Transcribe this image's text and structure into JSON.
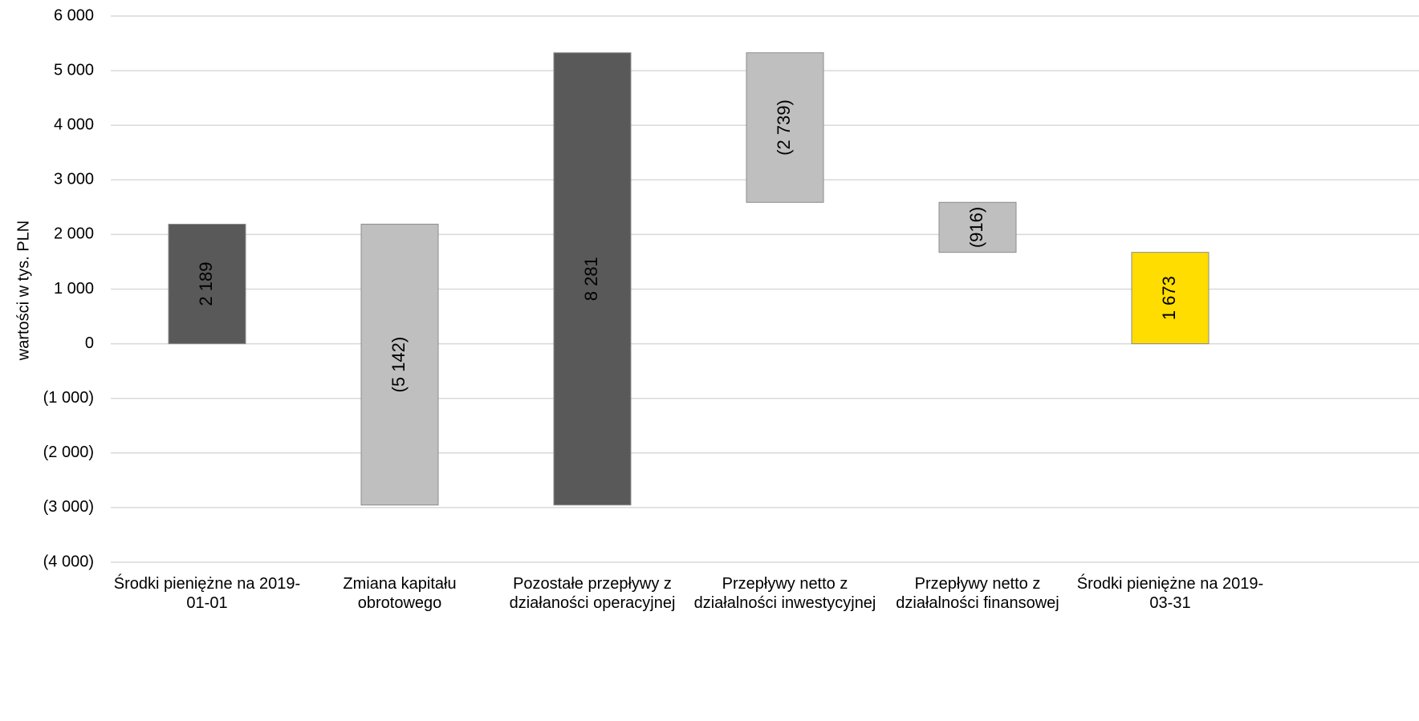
{
  "chart_data": {
    "type": "waterfall",
    "y_label": "wartości w tys. PLN",
    "categories": [
      "Środki pieniężne na 2019-01-01",
      "Zmiana kapitału obrotowego",
      "Pozostałe przepływy z działaności operacyjnej",
      "Przepływy netto z działalności inwestycyjnej",
      "Przepływy netto z działalności finansowej",
      "Środki pieniężne na 2019-03-31"
    ],
    "values": [
      2189,
      -5142,
      8281,
      -2739,
      -916,
      1673
    ],
    "value_labels": [
      "2 189",
      "(5 142)",
      "8 281",
      "(2 739)",
      "(916)",
      "1 673"
    ],
    "colors": [
      "#595959",
      "#bfbfbf",
      "#595959",
      "#bfbfbf",
      "#bfbfbf",
      "#ffdd00"
    ],
    "ylim": [
      -4000,
      6000
    ],
    "yticks": [
      {
        "value": -4000,
        "label": "(4 000)"
      },
      {
        "value": -3000,
        "label": "(3 000)"
      },
      {
        "value": -2000,
        "label": "(2 000)"
      },
      {
        "value": -1000,
        "label": "(1 000)"
      },
      0,
      {
        "value": 1000,
        "label": "1 000"
      },
      {
        "value": 2000,
        "label": "2 000"
      },
      {
        "value": 3000,
        "label": "3 000"
      },
      {
        "value": 4000,
        "label": "4 000"
      },
      {
        "value": 5000,
        "label": "5 000"
      },
      {
        "value": 6000,
        "label": "6 000"
      }
    ],
    "grid": true
  }
}
